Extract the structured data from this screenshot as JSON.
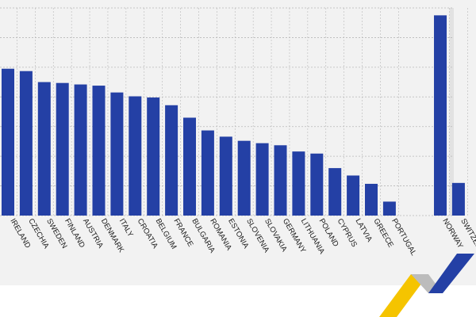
{
  "chart_data": {
    "type": "bar",
    "title": "",
    "xlabel": "",
    "ylabel": "",
    "ylim": [
      0,
      7
    ],
    "grid": true,
    "colors": {
      "bar": "#2440a5",
      "panel": "#f2f2f2",
      "highlight_band": "#e2e2e2",
      "grid": "#b8b8b8"
    },
    "categories": [
      "IRELAND",
      "CZECHIA",
      "SWEDEN",
      "FINLAND",
      "AUSTRIA",
      "DENMARK",
      "ITALY",
      "CROATIA",
      "BELGIUM",
      "FRANCE",
      "BULGARIA",
      "ROMANIA",
      "ESTONIA",
      "SLOVENIA",
      "SLOVAKIA",
      "GERMANY",
      "LITHUANIA",
      "POLAND",
      "CYPRUS",
      "LATVIA",
      "GREECE",
      "PORTUGAL",
      "NORWAY",
      "SWITZERLAND"
    ],
    "values": [
      4.95,
      4.87,
      4.5,
      4.47,
      4.42,
      4.38,
      4.15,
      4.02,
      3.98,
      3.72,
      3.3,
      2.87,
      2.66,
      2.52,
      2.44,
      2.37,
      2.16,
      2.09,
      1.6,
      1.35,
      1.07,
      0.47,
      6.75,
      1.1
    ],
    "groups": {
      "eu_count": 22,
      "non_eu": [
        "NORWAY",
        "SWITZERLAND"
      ]
    }
  },
  "logo": {
    "name": "zigzag-logo",
    "colors": [
      "#f5c400",
      "#bcbcbc",
      "#2440a5"
    ]
  }
}
